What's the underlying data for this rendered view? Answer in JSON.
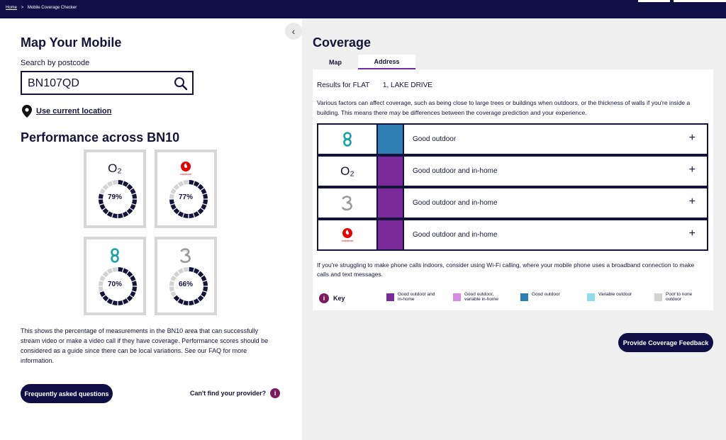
{
  "breadcrumb": {
    "home": "Home",
    "separator": ">",
    "current": "Mobile Coverage Checker"
  },
  "left": {
    "title": "Map Your Mobile",
    "search_label": "Search by postcode",
    "search_value": "BN107QD",
    "use_location": "Use current location",
    "performance_title": "Performance across BN10",
    "cards": [
      {
        "operator": "O2",
        "percent": 79,
        "percent_label": "79%"
      },
      {
        "operator": "Vodafone",
        "percent": 77,
        "percent_label": "77%"
      },
      {
        "operator": "EE",
        "percent": 70,
        "percent_label": "70%"
      },
      {
        "operator": "Three",
        "percent": 66,
        "percent_label": "66%"
      }
    ],
    "description": "This shows the percentage of measurements in the BN10 area that can successfully stream video or make a video call if they have coverage. Performance scores should be considered as a guide since there can be local variations. See our FAQ for more information.",
    "faq_button": "Frequently asked questions",
    "cant_find": "Can't find your provider?"
  },
  "right": {
    "title": "Coverage",
    "tabs": [
      "Map",
      "Address"
    ],
    "results_prefix": "Results for FLAT",
    "results_address": "1, LAKE DRIVE",
    "factors": "Various factors can affect coverage, such as being close to large trees or buildings when outdoors, or the thickness of walls if you're inside a building. This means there may be differences between the coverage prediction and your experience.",
    "rows": [
      {
        "operator": "EE",
        "status": "Good outdoor",
        "color": "#2e7db3"
      },
      {
        "operator": "O2",
        "status": "Good outdoor and in-home",
        "color": "#7b2a9a"
      },
      {
        "operator": "Three",
        "status": "Good outdoor and in-home",
        "color": "#7b2a9a"
      },
      {
        "operator": "Vodafone",
        "status": "Good outdoor and in-home",
        "color": "#7b2a9a"
      }
    ],
    "wifi_note": "If you're struggling to make phone calls indoors, consider using Wi-Fi calling, where your mobile phone uses a broadband connection to make calls and text messages.",
    "key_label": "Key",
    "legend": [
      {
        "label": "Good outdoor and in-home",
        "color": "#7b2a9a"
      },
      {
        "label": "Good outdoor, variable in-home",
        "color": "#d58be0"
      },
      {
        "label": "Good outdoor",
        "color": "#2e7db3"
      },
      {
        "label": "Variable outdoor",
        "color": "#8fdcea"
      },
      {
        "label": "Poor to none outdoor",
        "color": "#d3d3d3"
      }
    ],
    "feedback_button": "Provide Coverage Feedback"
  },
  "icons": {
    "o2_logo": "O₂",
    "plus": "+",
    "collapse": "‹",
    "info": "i"
  }
}
